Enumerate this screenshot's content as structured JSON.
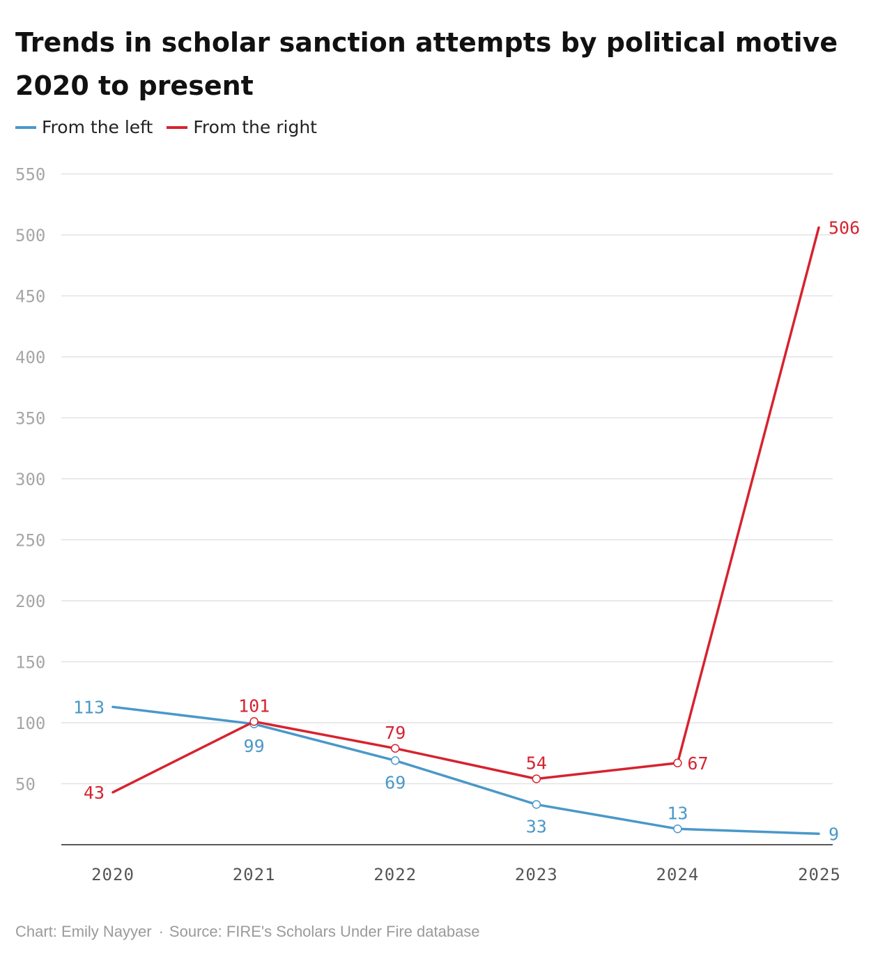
{
  "chart_data": {
    "type": "line",
    "title": "Trends in scholar sanction attempts by political motive",
    "subtitle": "2020 to present",
    "categories": [
      "2020",
      "2021",
      "2022",
      "2023",
      "2024",
      "2025"
    ],
    "series": [
      {
        "name": "From the left",
        "color": "#4a98c9",
        "values": [
          113,
          99,
          69,
          33,
          13,
          9
        ]
      },
      {
        "name": "From the right",
        "color": "#d6232f",
        "values": [
          43,
          101,
          79,
          54,
          67,
          506
        ]
      }
    ],
    "yticks": [
      "50",
      "100",
      "150",
      "200",
      "250",
      "300",
      "350",
      "400",
      "450",
      "500",
      "550"
    ],
    "ylim": [
      0,
      550
    ],
    "xlabel": "",
    "ylabel": "",
    "grid": true,
    "legend": "top-left"
  },
  "footer": {
    "credit": "Chart: Emily Nayyer",
    "separator": "·",
    "source": "Source: FIRE's Scholars Under Fire database"
  },
  "colors": {
    "left": "#4a98c9",
    "right": "#d6232f",
    "grid": "#e2e2e2",
    "axis_text": "#a6a6a6"
  }
}
